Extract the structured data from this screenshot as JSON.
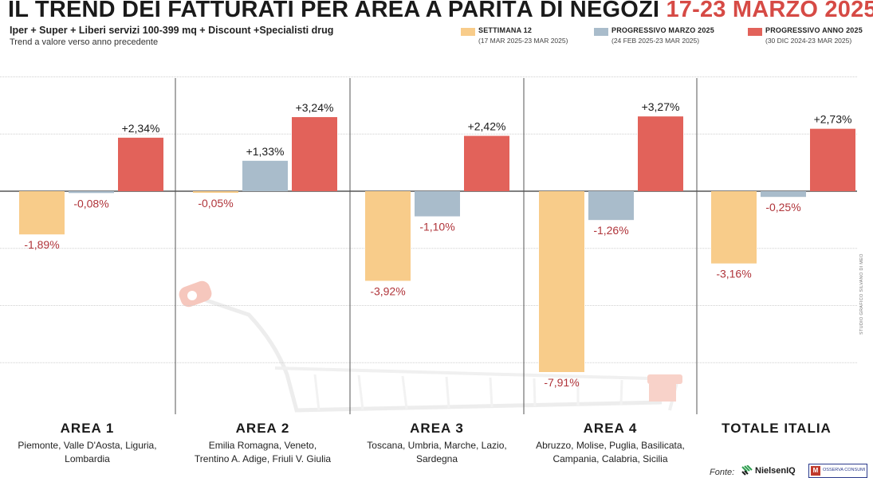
{
  "header": {
    "title_main": "IL TREND DEI FATTURATI PER AREA A PARITÀ DI NEGOZI",
    "title_dates": "17-23 MARZO 2025",
    "subtitle": "Iper + Super + Liberi servizi 100-399 mq + Discount +Specialisti drug",
    "note": "Trend a valore verso anno precedente"
  },
  "legend": [
    {
      "name": "SETTIMANA 12",
      "range": "(17 MAR 2025-23 MAR 2025)",
      "color": "#f8cc8a"
    },
    {
      "name": "PROGRESSIVO MARZO 2025",
      "range": "(24 FEB 2025-23 MAR 2025)",
      "color": "#a9bccb"
    },
    {
      "name": "PROGRESSIVO ANNO 2025",
      "range": "(30 DIC 2024-23 MAR 2025)",
      "color": "#e2625a"
    }
  ],
  "chart_data": {
    "type": "bar",
    "categories": [
      "AREA 1",
      "AREA 2",
      "AREA 3",
      "AREA 4",
      "TOTALE ITALIA"
    ],
    "series": [
      {
        "name": "SETTIMANA 12",
        "values": [
          -1.89,
          -0.05,
          -3.92,
          -7.91,
          -3.16
        ],
        "labels": [
          "-1,89%",
          "-0,05%",
          "-3,92%",
          "-7,91%",
          "-3,16%"
        ]
      },
      {
        "name": "PROGRESSIVO MARZO 2025",
        "values": [
          -0.08,
          1.33,
          -1.1,
          -1.26,
          -0.25
        ],
        "labels": [
          "-0,08%",
          "+1,33%",
          "-1,10%",
          "-1,26%",
          "-0,25%"
        ]
      },
      {
        "name": "PROGRESSIVO ANNO 2025",
        "values": [
          2.34,
          3.24,
          2.42,
          3.27,
          2.73
        ],
        "labels": [
          "+2,34%",
          "+3,24%",
          "+2,42%",
          "+3,27%",
          "+2,73%"
        ]
      }
    ],
    "ylim": [
      -9,
      4
    ],
    "grid": true,
    "colors": {
      "positive_label": "#1a1a1a",
      "negative_label": "#b0343a"
    }
  },
  "areas": [
    {
      "title": "AREA 1",
      "regions_line1": "Piemonte, Valle D'Aosta, Liguria,",
      "regions_line2": "Lombardia"
    },
    {
      "title": "AREA 2",
      "regions_line1": "Emilia Romagna, Veneto,",
      "regions_line2": "Trentino A. Adige, Friuli V. Giulia"
    },
    {
      "title": "AREA 3",
      "regions_line1": "Toscana, Umbria, Marche, Lazio,",
      "regions_line2": "Sardegna"
    },
    {
      "title": "AREA 4",
      "regions_line1": "Abruzzo, Molise, Puglia, Basilicata,",
      "regions_line2": "Campania, Calabria, Sicilia"
    },
    {
      "title": "TOTALE ITALIA",
      "regions_line1": "",
      "regions_line2": ""
    }
  ],
  "footer": {
    "credit": "STUDIO GRAFICO SILVANO DI MEO",
    "source_label": "Fonte:",
    "logo_nielsen": "NielsenIQ",
    "logo_observa": "OSSERVA CONSUMI",
    "logo_observa_mark": "M"
  }
}
